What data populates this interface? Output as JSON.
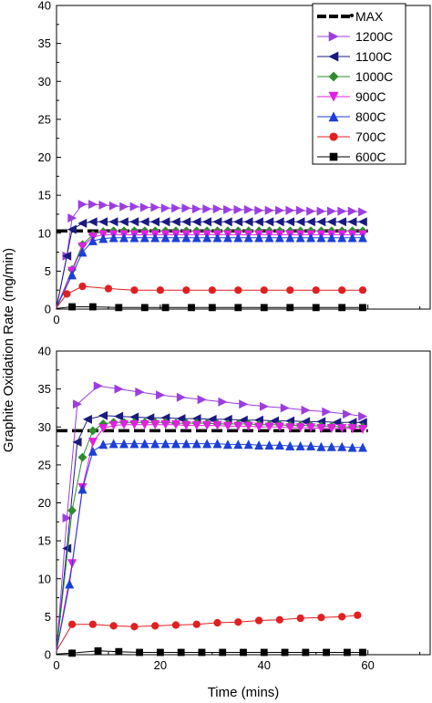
{
  "figure": {
    "ylabel": "Graphite Oxidation Rate (mg/min)",
    "xlabel": "Time (mins)"
  },
  "legend": {
    "entries": [
      {
        "label": "MAX",
        "color": "#000000",
        "marker": "dot-line"
      },
      {
        "label": "1200C",
        "color": "#9b3de0",
        "marker": "triangle-right"
      },
      {
        "label": "1100C",
        "color": "#1a1a80",
        "marker": "triangle-left"
      },
      {
        "label": "1000C",
        "color": "#2e8b2e",
        "marker": "diamond"
      },
      {
        "label": "900C",
        "color": "#e020e0",
        "marker": "triangle-down"
      },
      {
        "label": "800C",
        "color": "#1c3fd8",
        "marker": "triangle-up"
      },
      {
        "label": "700C",
        "color": "#e02020",
        "marker": "circle"
      },
      {
        "label": "600C",
        "color": "#000000",
        "marker": "square"
      }
    ]
  },
  "chart_data": [
    {
      "type": "line",
      "panel": "top",
      "xlim": [
        0,
        72
      ],
      "ylim": [
        0,
        40
      ],
      "xticks": [
        0
      ],
      "yticks": [
        0,
        5,
        10,
        15,
        20,
        25,
        30,
        35,
        40
      ],
      "max_line": 10.3,
      "series": [
        {
          "name": "1200C",
          "x": [
            0,
            2,
            3,
            5,
            7,
            9,
            11,
            13,
            15,
            17,
            19,
            21,
            23,
            25,
            27,
            29,
            31,
            33,
            35,
            37,
            39,
            41,
            43,
            45,
            47,
            49,
            51,
            53,
            55,
            57,
            59
          ],
          "y": [
            0.2,
            7,
            12,
            13.8,
            13.8,
            13.7,
            13.6,
            13.5,
            13.5,
            13.4,
            13.4,
            13.3,
            13.3,
            13.3,
            13.2,
            13.2,
            13.2,
            13.1,
            13.1,
            13.1,
            13.0,
            13.0,
            13.0,
            13.0,
            13.0,
            12.9,
            12.9,
            12.9,
            12.9,
            12.9,
            12.8
          ]
        },
        {
          "name": "1100C",
          "x": [
            0,
            2,
            3,
            5,
            7,
            9,
            11,
            13,
            15,
            17,
            19,
            21,
            23,
            25,
            27,
            29,
            31,
            33,
            35,
            37,
            39,
            41,
            43,
            45,
            47,
            49,
            51,
            53,
            55,
            57,
            59
          ],
          "y": [
            0.2,
            7,
            10.5,
            11.3,
            11.5,
            11.5,
            11.5,
            11.5,
            11.5,
            11.5,
            11.5,
            11.5,
            11.5,
            11.5,
            11.5,
            11.5,
            11.5,
            11.5,
            11.5,
            11.5,
            11.5,
            11.5,
            11.5,
            11.5,
            11.5,
            11.5,
            11.5,
            11.5,
            11.5,
            11.5,
            11.5
          ]
        },
        {
          "name": "1000C",
          "x": [
            0,
            3,
            5,
            7,
            9,
            11,
            13,
            15,
            17,
            19,
            21,
            23,
            25,
            27,
            29,
            31,
            33,
            35,
            37,
            39,
            41,
            43,
            45,
            47,
            49,
            51,
            53,
            55,
            57,
            59
          ],
          "y": [
            0.2,
            5.2,
            8.5,
            9.8,
            10.2,
            10.3,
            10.3,
            10.3,
            10.3,
            10.3,
            10.3,
            10.3,
            10.3,
            10.3,
            10.3,
            10.3,
            10.3,
            10.3,
            10.3,
            10.3,
            10.3,
            10.3,
            10.3,
            10.3,
            10.3,
            10.3,
            10.3,
            10.3,
            10.3,
            10.3
          ]
        },
        {
          "name": "900C",
          "x": [
            0,
            3,
            5,
            7,
            9,
            11,
            13,
            15,
            17,
            19,
            21,
            23,
            25,
            27,
            29,
            31,
            33,
            35,
            37,
            39,
            41,
            43,
            45,
            47,
            49,
            51,
            53,
            55,
            57,
            59
          ],
          "y": [
            0.2,
            5,
            8.2,
            9.5,
            9.8,
            9.8,
            9.8,
            9.8,
            9.8,
            9.8,
            9.8,
            9.8,
            9.8,
            9.8,
            9.8,
            9.8,
            9.8,
            9.8,
            9.8,
            9.8,
            9.8,
            9.8,
            9.8,
            9.8,
            9.8,
            9.8,
            9.8,
            9.8,
            9.8,
            9.8
          ]
        },
        {
          "name": "800C",
          "x": [
            0,
            3,
            5,
            7,
            9,
            11,
            13,
            15,
            17,
            19,
            21,
            23,
            25,
            27,
            29,
            31,
            33,
            35,
            37,
            39,
            41,
            43,
            45,
            47,
            49,
            51,
            53,
            55,
            57,
            59
          ],
          "y": [
            0.2,
            4.5,
            7.5,
            9.0,
            9.3,
            9.4,
            9.4,
            9.4,
            9.4,
            9.4,
            9.4,
            9.4,
            9.4,
            9.4,
            9.4,
            9.4,
            9.4,
            9.4,
            9.4,
            9.4,
            9.4,
            9.4,
            9.4,
            9.4,
            9.4,
            9.4,
            9.4,
            9.4,
            9.4,
            9.4
          ]
        },
        {
          "name": "700C",
          "x": [
            0,
            2,
            5,
            10,
            15,
            20,
            25,
            30,
            35,
            40,
            45,
            50,
            55,
            59
          ],
          "y": [
            0.2,
            2.0,
            3.0,
            2.7,
            2.5,
            2.5,
            2.5,
            2.5,
            2.5,
            2.5,
            2.5,
            2.5,
            2.5,
            2.5
          ]
        },
        {
          "name": "600C",
          "x": [
            0,
            3,
            7,
            12,
            17,
            21,
            26,
            30,
            35,
            40,
            45,
            50,
            55,
            59
          ],
          "y": [
            0.1,
            0.3,
            0.3,
            0.2,
            0.2,
            0.2,
            0.2,
            0.2,
            0.2,
            0.2,
            0.2,
            0.2,
            0.2,
            0.2
          ]
        }
      ]
    },
    {
      "type": "line",
      "panel": "bottom",
      "xlim": [
        0,
        72
      ],
      "ylim": [
        0,
        40
      ],
      "xticks": [
        0,
        20,
        40,
        60
      ],
      "yticks": [
        0,
        5,
        10,
        15,
        20,
        25,
        30,
        35,
        40
      ],
      "max_line": 29.5,
      "series": [
        {
          "name": "1200C",
          "x": [
            0,
            2,
            4,
            8,
            12,
            16,
            20,
            24,
            28,
            32,
            36,
            40,
            44,
            48,
            52,
            56,
            59
          ],
          "y": [
            0.5,
            18,
            33,
            35.4,
            35,
            34.6,
            34.2,
            33.9,
            33.6,
            33.3,
            33.0,
            32.7,
            32.5,
            32.2,
            32.0,
            31.7,
            31.4
          ]
        },
        {
          "name": "1100C",
          "x": [
            0,
            2,
            4,
            6,
            9,
            12,
            15,
            18,
            21,
            24,
            27,
            30,
            33,
            36,
            39,
            42,
            45,
            48,
            51,
            54,
            57,
            59
          ],
          "y": [
            0.5,
            14,
            28,
            31,
            31.5,
            31.4,
            31.3,
            31.2,
            31.2,
            31.1,
            31.1,
            31.0,
            31.0,
            30.9,
            30.9,
            30.8,
            30.8,
            30.7,
            30.7,
            30.6,
            30.6,
            30.6
          ]
        },
        {
          "name": "1000C",
          "x": [
            0,
            3,
            5,
            7,
            9,
            11,
            13,
            15,
            17,
            19,
            21,
            23,
            25,
            27,
            29,
            31,
            33,
            35,
            37,
            39,
            41,
            43,
            45,
            47,
            49,
            51,
            53,
            55,
            57,
            59
          ],
          "y": [
            0.5,
            19,
            26,
            29.5,
            30.4,
            30.6,
            30.6,
            30.6,
            30.6,
            30.6,
            30.6,
            30.5,
            30.5,
            30.5,
            30.5,
            30.4,
            30.4,
            30.4,
            30.4,
            30.3,
            30.3,
            30.3,
            30.2,
            30.2,
            30.2,
            30.1,
            30.1,
            30.0,
            30.0,
            30.0
          ]
        },
        {
          "name": "900C",
          "x": [
            0,
            3,
            5,
            7,
            9,
            11,
            13,
            15,
            17,
            19,
            21,
            23,
            25,
            27,
            29,
            31,
            33,
            35,
            37,
            39,
            41,
            43,
            45,
            47,
            49,
            51,
            53,
            55,
            57,
            59
          ],
          "y": [
            0.5,
            12,
            22,
            28,
            29.8,
            30.2,
            30.3,
            30.3,
            30.3,
            30.3,
            30.3,
            30.3,
            30.2,
            30.2,
            30.2,
            30.2,
            30.1,
            30.1,
            30.1,
            30.0,
            30.0,
            30.0,
            29.9,
            29.9,
            29.9,
            29.8,
            29.8,
            29.8,
            29.8,
            29.7
          ]
        },
        {
          "name": "800C",
          "x": [
            0,
            2.5,
            5,
            7,
            9,
            11,
            13,
            15,
            17,
            19,
            21,
            23,
            25,
            27,
            29,
            31,
            33,
            35,
            37,
            39,
            41,
            43,
            45,
            47,
            49,
            51,
            53,
            55,
            57,
            59
          ],
          "y": [
            0.5,
            9.3,
            21.8,
            26.8,
            27.7,
            27.8,
            27.8,
            27.8,
            27.8,
            27.8,
            27.8,
            27.8,
            27.8,
            27.8,
            27.8,
            27.8,
            27.7,
            27.7,
            27.7,
            27.6,
            27.6,
            27.6,
            27.5,
            27.5,
            27.5,
            27.4,
            27.4,
            27.4,
            27.3,
            27.3
          ]
        },
        {
          "name": "700C",
          "x": [
            0,
            3,
            7,
            11,
            15,
            19,
            23,
            27,
            31,
            35,
            39,
            43,
            47,
            51,
            55,
            58
          ],
          "y": [
            0.5,
            4.0,
            4.0,
            3.8,
            3.7,
            3.8,
            3.9,
            4.0,
            4.2,
            4.3,
            4.5,
            4.6,
            4.8,
            4.9,
            5.0,
            5.2
          ]
        },
        {
          "name": "600C",
          "x": [
            0,
            3,
            8,
            12,
            16,
            20,
            24,
            28,
            32,
            36,
            40,
            44,
            48,
            52,
            56,
            59
          ],
          "y": [
            0.1,
            0.2,
            0.5,
            0.4,
            0.3,
            0.3,
            0.3,
            0.3,
            0.3,
            0.3,
            0.3,
            0.3,
            0.3,
            0.3,
            0.3,
            0.3
          ]
        }
      ]
    }
  ]
}
